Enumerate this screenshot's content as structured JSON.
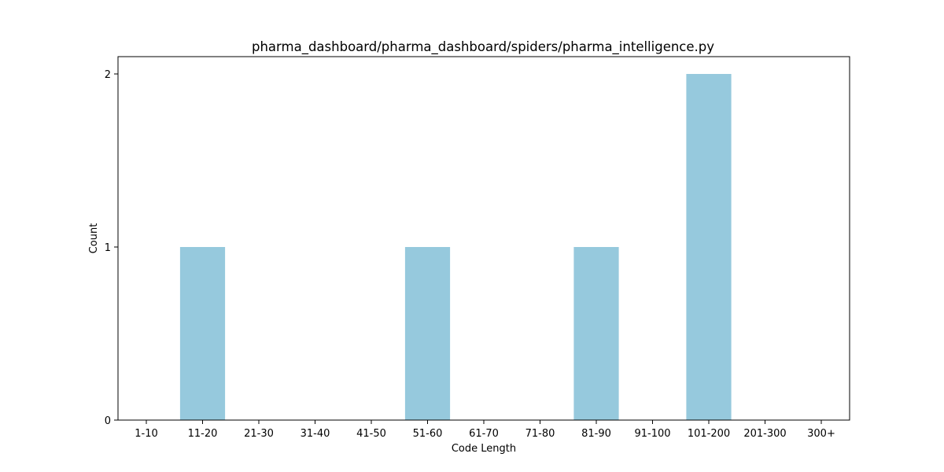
{
  "chart_data": {
    "type": "bar",
    "title": "pharma_dashboard/pharma_dashboard/spiders/pharma_intelligence.py",
    "xlabel": "Code Length",
    "ylabel": "Count",
    "categories": [
      "1-10",
      "11-20",
      "21-30",
      "31-40",
      "41-50",
      "51-60",
      "61-70",
      "71-80",
      "81-90",
      "91-100",
      "101-200",
      "201-300",
      "300+"
    ],
    "values": [
      0,
      1,
      0,
      0,
      0,
      1,
      0,
      0,
      1,
      0,
      2,
      0,
      0
    ],
    "yticks": [
      0,
      1,
      2
    ],
    "ylim": [
      0,
      2.1
    ],
    "bar_color": "#96c9dd",
    "grid": false,
    "legend": "none"
  }
}
